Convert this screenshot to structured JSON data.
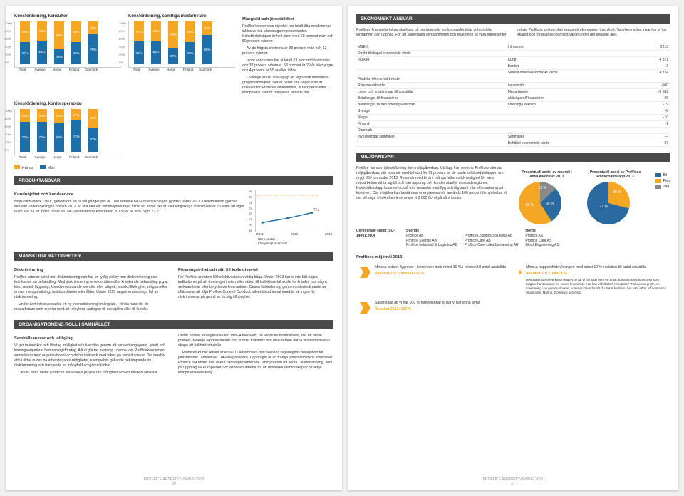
{
  "page_left": {
    "chart1": {
      "title": "Könsfördelning, konsulter",
      "cats": [
        "Totalt",
        "Sverige",
        "Norge",
        "Finland",
        "Danmark"
      ],
      "k": [
        48,
        45,
        65,
        48,
        30
      ],
      "m": [
        52,
        55,
        35,
        52,
        70
      ]
    },
    "chart2": {
      "title": "Könsfördelning, samtliga medarbetare",
      "cats": [
        "Totalt",
        "Sverige",
        "Norge",
        "Finland",
        "Danmark"
      ],
      "k": [
        47,
        46,
        63,
        48,
        32
      ],
      "m": [
        53,
        54,
        37,
        52,
        68
      ]
    },
    "chart3": {
      "title": "Könsfördelning, kontorspersonal",
      "cats": [
        "Totalt",
        "Sverige",
        "Norge",
        "Finland",
        "Danmark"
      ],
      "k": [
        30,
        30,
        32,
        27,
        43
      ],
      "m": [
        70,
        70,
        68,
        73,
        57
      ]
    },
    "legend_k": "Kvinnor",
    "legend_m": "Män",
    "mangfald": {
      "head": "Mångfald och jämställdhet",
      "p1": "Profficekoncernens styrelse har totalt åtta medlemmar inklusive två arbetstagarrepresentanter. Könsfördelningen är helt jämn med 50 procent män och 50 procent kvinnor.",
      "p2": "Av de högsta cheferna är 38 procent män och 62 procent kvinnor.",
      "p3": "Inom koncernen har vi totalt 63 procent tjänstemän och 37 procent arbetare. 58 procent är 29 år eller yngre och 4 procent är 55 år eller äldre.",
      "p4": "I Sverige är det inte lagligt att registrera minoritets­gruppstillhörighet. Det är heller inte något som är relevant för Proffices verksamhet, vi rekryterar efter kompetens. Därför redovisas det inte här."
    },
    "produktansvar": {
      "head": "PRODUKTANSVAR",
      "sub": "Kundnöjdhet och kundservice",
      "p1": "Nöjd-kund-index, \"NKI\", genomförs en till två gånger per år. Den senaste NKI-undersökningen gjordes våren 2013. Dessförinnan gjordes senaste undersökningen hösten 2012. Vi ska öka vår kundnöjdhet med minst en enhet per år. Det långsiktiga indexmålet är 75 samt att inget team ska ha ett index under 65. NKI-resultatet för koncernen 2013 var all time high: 72,2.",
      "line": {
        "years": [
          "2011",
          "2012",
          "2013"
        ],
        "ymin": 69,
        "ymax": 76,
        "vals": [
          70.5,
          71.2,
          72.2
        ],
        "l1": "NKI-resultat",
        "l2": "Långsiktigt indexmål"
      }
    },
    "manskliga": {
      "head": "MÄNSKLIGA RÄTTIGHETER",
      "sub1": "Diskriminering",
      "p1": "Proffice arbetar aktivt mot diskriminering och har en tydlig policy mot diskriminering och kränkande särbehandling. Med diskriminering avses orättvis eller kränkande behandling p.g.a. kön, sexuell läggning, könsöverskridande identitet eller uttryck, etnisk tillhörighet, religion eller annan trosuppfattning, funktionshinder eller ålder. Under 2013 rapporterades inga fall av diskriminering.",
      "p2": "Under året introducerades en ny internutbildning i mångfald, i första hand för de medarbetare som arbetar med att rekrytera, antingen till oss själva eller till kunder.",
      "sub2": "Föreningsfrihet och rätt till kollektivavtal",
      "p3": "För Proffice är rätten till kollektivavtal en viktig fråga. Under 2013 har vi inte fått några indikationer på att föreningsfriheten eller rätten till kollektivavtal skulle ha kränkts hos några verksamheter eller betydande leverantörer. Dessa förbinder sig genom undertecknande av affärsavtal att följa Proffice Code of Conduct, vilket bland annat innebär att ingen får diskrimineras på grund av facklig tillhörighet."
    },
    "org": {
      "head": "ORGANISATIONENS ROLL I SAMHÄLLET",
      "sub": "Samhällsansvar och lobbying",
      "p1": "Vi ger människor och företag möjlighet att utvecklas genom att vara ett engagerat, lyhört och lösningsorienterat bemanningsföretag. Allt vi gör tar avstamp i denna idé. Profficekoncernen samarbetar med organisationer och deltar i nätverk med fokus på socialt ansvar. Det innebär att vi riktar in oss på arbetstagares rättigheter, exempelvis gällande bekämpande av diskriminering och främjande av mångfald och jämställdhet.",
      "p2": "Utöver detta deltar Proffice i flera lokala projekt om mångfald och ett hållbart arbetsliv.",
      "p3": "Under hösten arrangerades ett \"mini-Almedalen\" på Proffices huvudkontor, där ett flertal politiker, fackliga representanter och kunder träffades och diskuterade hur vi tillsammans kan skapa ett hållbart arbetsliv.",
      "p4": "Proffices Public Affairs är en av 11 ledamöter i den svenska regeringens delegation för jämställdhet i arbetslivet (JA-delegationen). Uppdraget är att främja jämställdheten i arbetslivet. Proffice har under året också varit representerade i styrgruppen för Tema Likabehandling, som på uppdrag av Europeiska Socialfonden arbetar för att motverka utanförskap och främja kompetensutveckling."
    },
    "footer": "PROFFICE ÅRSREDOVISNING 2013",
    "pageno": "20"
  },
  "page_right": {
    "ekon": {
      "head": "EKONOMISKT ANSVAR",
      "p1": "Proffices finansiella fokus ska ligga på områden där konkurrensfördelar och uthållig lönsamhet kan uppnås. För att säkerställa verksamheten och relationen till våra intressenter",
      "p2": "måste Proffices verksamhet skapa ett ekonomiskt överskott. Tabellen nedan visar hur vi har skapat och fördelat ekonomiskt värde under det senaste året.",
      "table": {
        "h1": "MSEK",
        "h2": "Intressent",
        "h3": "2013",
        "rows": [
          [
            "Direkt tillskapat ekonomiskt värde",
            "",
            ""
          ],
          [
            "Intäkter",
            "Kund",
            "4 321"
          ],
          [
            "",
            "Banker",
            "3"
          ],
          [
            "",
            "Skapat direkt ekonomiskt värde",
            "4 324"
          ],
          [
            "Fördelat ekonomiskt värde",
            "",
            ""
          ],
          [
            "Rörelsekostnader",
            "Leverantör",
            "-600"
          ],
          [
            "Löner och ersättningar till anställda",
            "Medarbetare",
            "-3 582"
          ],
          [
            "Betalningar till finansiärer",
            "Aktieägare/Finansiärer",
            "-26"
          ],
          [
            "Betalningar till den offentliga sektorn",
            "Offentliga sektorn",
            "-19"
          ],
          [
            "  Sverige",
            "",
            "-8"
          ],
          [
            "  Norge",
            "",
            "-10"
          ],
          [
            "  Finland",
            "",
            "-1"
          ],
          [
            "  Danmark",
            "",
            "—"
          ],
          [
            "Investeringar samhället",
            "Samhället",
            "—"
          ],
          [
            "",
            "Behållet ekonomiskt värde",
            "97"
          ]
        ]
      }
    },
    "miljo": {
      "head": "MILJÖANSVAR",
      "p1": "Proffice har som tjänsteföretag liten miljöpåverkan. Utsläpp från resor är Proffices största miljöpåverkan, där resande med bil stod för 71 procent av de totala koldioxidutsläppen om drygt 885 ton under 2013. Resande med bil är i många fall en nödvändighet för våra medarbetare att ta sig till och från uppdrag och kunder utanför storstadsregioner. Koldioxidutsläpp kommer också från resandet med flyg och tåg samt från elförbrukning på kontoren. Där vi själva kan bestämma energileverantör används 100 procent förnyelsebar el, det vill säga vindkraften leveranser vi 3 000 GJ el på våra kontor.",
      "pie1": {
        "title": "Procentuell andel av resemil i antal kilometer 2013",
        "bil": 28,
        "flyg": 59,
        "tag": 13
      },
      "pie2": {
        "title": "Procentuell andel av Proffices koldioxidutsläpp 2013",
        "bil": 71,
        "flyg": 29,
        "tag": 0
      },
      "leg_bil": "Bil",
      "leg_flyg": "Flyg",
      "leg_tag": "Tåg",
      "cert_head": "Certifierade enligt ISO-14001:2004",
      "cert_sv_h": "Sverige",
      "cert_sv": "Proffice AB\nProffice Sverige AB\nProffice Industrial & Logistics AB",
      "cert_sv2": "Proffice Logistics Solutions AB\nProffice Care AB\nProffice Care Läkarbemanning AB",
      "cert_no_h": "Norge",
      "cert_no": "Proffice AS\nProffice Care AS\nDfind Engineering AS",
      "mal_head": "Proffices miljömål 2013",
      "goal1_t": "Minska antalet flygresor i koncernen med minst 10 % i relation till antal anställda",
      "goal1_r": "Resultat 2013: minskat 21 %",
      "goal2_t": "Säkerställa att vi har 100 % förnyelsebar el där vi har egna avtal",
      "goal2_r": "Resultat 2013: 100 %",
      "goal3_t": "Minska pappersförbrukningen med minst 10 % i relation till antal anställda",
      "goal3_r": "Resultat 2013: ökat 1 %",
      "goal3_p": "Resultatet har påverkats negativt av att vi har tagit hem en antal administrativa funktioner som tidigare hanterats av en extern leverantör. Hur kan vi förbättra resultatet? \"Follow me print\", en investering i ny printer-struktur, kommer kravs för att få utökat funktion, har varit infört på kontoren i Stockholm, Malmö, Göteborg och Oslo."
    },
    "footer": "PROFFICE ÅRSREDOVISNING 2013",
    "pageno": "21"
  },
  "colors": {
    "kvinnor": "#f5a623",
    "man": "#1e6fa8",
    "bil": "#2b6aa0",
    "flyg": "#f5a623",
    "tag": "#8a8a8a",
    "section_bg": "#4a4a4a",
    "orange": "#f5a623"
  }
}
